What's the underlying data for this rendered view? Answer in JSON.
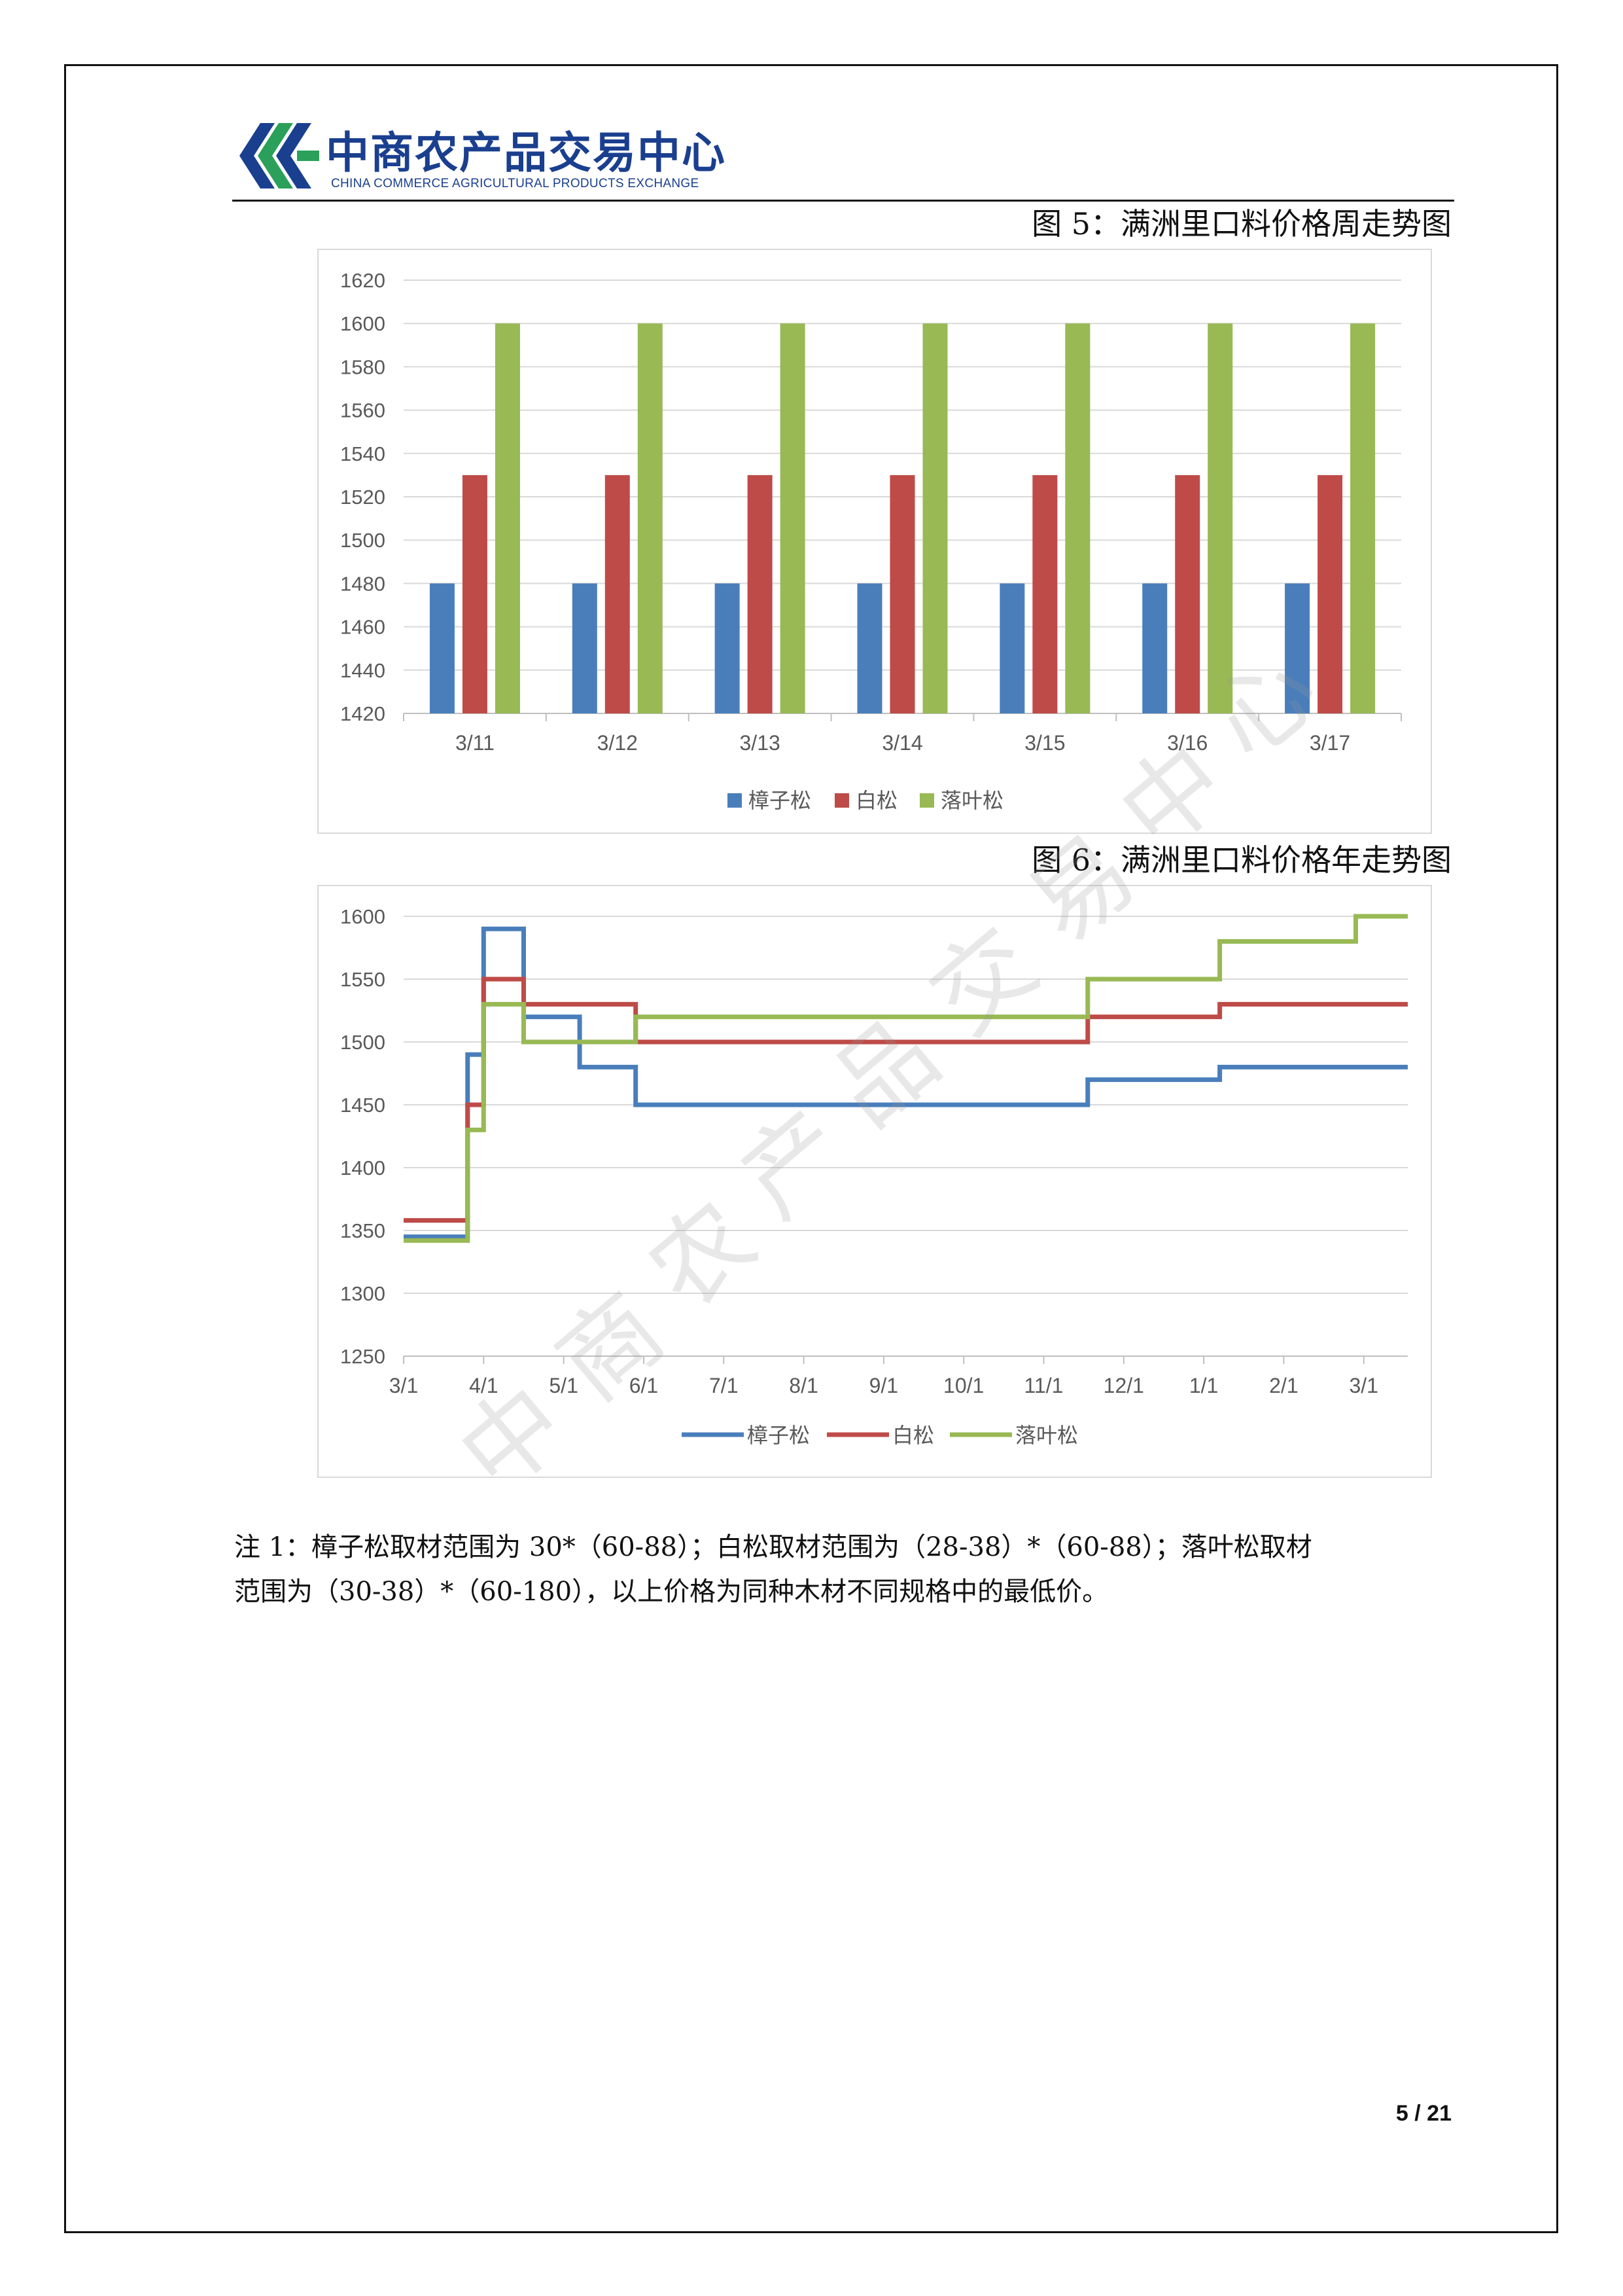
{
  "header": {
    "logo_cn": "中商农产品交易中心",
    "logo_en": "CHINA COMMERCE AGRICULTURAL PRODUCTS EXCHANGE"
  },
  "figures": {
    "fig5_title": "图 5：满洲里口料价格周走势图",
    "fig6_title": "图 6：满洲里口料价格年走势图"
  },
  "colors": {
    "series1": "#4a7ebb",
    "series2": "#be4b48",
    "series3": "#98b954"
  },
  "chart_data": [
    {
      "type": "bar",
      "title": "",
      "categories": [
        "3/11",
        "3/12",
        "3/13",
        "3/14",
        "3/15",
        "3/16",
        "3/17"
      ],
      "series": [
        {
          "name": "樟子松",
          "values": [
            1480,
            1480,
            1480,
            1480,
            1480,
            1480,
            1480
          ]
        },
        {
          "name": "白松",
          "values": [
            1530,
            1530,
            1530,
            1530,
            1530,
            1530,
            1530
          ]
        },
        {
          "name": "落叶松",
          "values": [
            1600,
            1600,
            1600,
            1600,
            1600,
            1600,
            1600
          ]
        }
      ],
      "ylim": [
        1420,
        1620
      ],
      "yticks": [
        1420,
        1440,
        1460,
        1480,
        1500,
        1520,
        1540,
        1560,
        1580,
        1600,
        1620
      ],
      "grid": true,
      "legend": "bottom"
    },
    {
      "type": "line",
      "title": "",
      "xticks": [
        "3/1",
        "4/1",
        "5/1",
        "6/1",
        "7/1",
        "8/1",
        "9/1",
        "10/1",
        "11/1",
        "12/1",
        "1/1",
        "2/1",
        "3/1"
      ],
      "xlim": [
        0,
        12.55
      ],
      "ylim": [
        1250,
        1600
      ],
      "yticks": [
        1250,
        1300,
        1350,
        1400,
        1450,
        1500,
        1550,
        1600
      ],
      "grid": true,
      "legend": "bottom",
      "step": true,
      "series": [
        {
          "name": "樟子松",
          "points": [
            [
              0,
              1345
            ],
            [
              0.8,
              1345
            ],
            [
              0.8,
              1490
            ],
            [
              1.0,
              1490
            ],
            [
              1.0,
              1590
            ],
            [
              1.5,
              1590
            ],
            [
              1.5,
              1520
            ],
            [
              2.2,
              1520
            ],
            [
              2.2,
              1480
            ],
            [
              2.9,
              1480
            ],
            [
              2.9,
              1450
            ],
            [
              8.55,
              1450
            ],
            [
              8.55,
              1470
            ],
            [
              10.2,
              1470
            ],
            [
              10.2,
              1480
            ],
            [
              12.55,
              1480
            ]
          ]
        },
        {
          "name": "白松",
          "points": [
            [
              0,
              1358
            ],
            [
              0.8,
              1358
            ],
            [
              0.8,
              1450
            ],
            [
              1.0,
              1450
            ],
            [
              1.0,
              1550
            ],
            [
              1.5,
              1550
            ],
            [
              1.5,
              1530
            ],
            [
              2.9,
              1530
            ],
            [
              2.9,
              1500
            ],
            [
              8.55,
              1500
            ],
            [
              8.55,
              1520
            ],
            [
              10.2,
              1520
            ],
            [
              10.2,
              1530
            ],
            [
              12.55,
              1530
            ]
          ]
        },
        {
          "name": "落叶松",
          "points": [
            [
              0,
              1342
            ],
            [
              0.8,
              1342
            ],
            [
              0.8,
              1430
            ],
            [
              1.0,
              1430
            ],
            [
              1.0,
              1530
            ],
            [
              1.5,
              1530
            ],
            [
              1.5,
              1500
            ],
            [
              2.9,
              1500
            ],
            [
              2.9,
              1520
            ],
            [
              8.55,
              1520
            ],
            [
              8.55,
              1550
            ],
            [
              10.2,
              1550
            ],
            [
              10.2,
              1580
            ],
            [
              11.9,
              1580
            ],
            [
              11.9,
              1600
            ],
            [
              12.55,
              1600
            ]
          ]
        }
      ]
    }
  ],
  "note": {
    "line1": "注 1：樟子松取材范围为 30*（60-88）；白松取材范围为（28-38）*（60-88）；落叶松取材",
    "line2": "范围为（30-38）*（60-180），以上价格为同种木材不同规格中的最低价。"
  },
  "watermark": [
    "中",
    "商",
    "农",
    "产",
    "品",
    "交",
    "易",
    "中",
    "心"
  ],
  "page_number": "5 / 21"
}
